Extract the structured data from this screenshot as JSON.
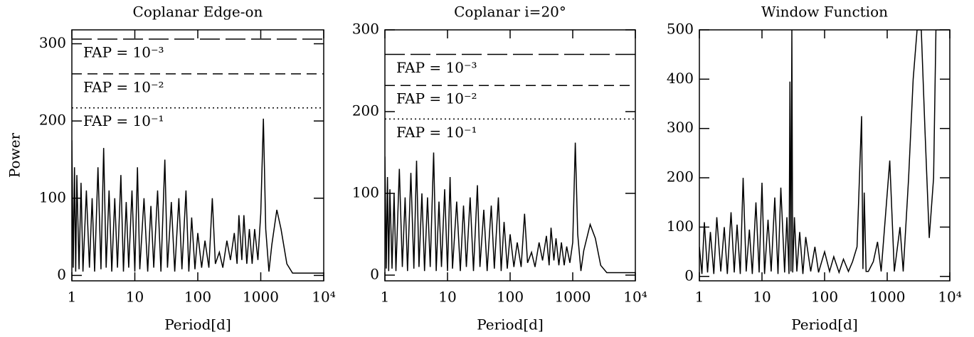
{
  "chart_data": [
    {
      "type": "line",
      "title": "Coplanar Edge-on",
      "xlabel": "Period[d]",
      "ylabel": "Power",
      "xscale": "log",
      "xlim": [
        1,
        10000
      ],
      "ylim": [
        -7,
        318
      ],
      "xticks": [
        1,
        10,
        100,
        1000,
        {
          "value": 10000,
          "label": "10⁴"
        }
      ],
      "yticks": [
        0,
        100,
        200,
        300
      ],
      "series": [
        {
          "color": "#000000",
          "x": [
            1,
            1.05,
            1.1,
            1.15,
            1.2,
            1.3,
            1.4,
            1.5,
            1.7,
            1.9,
            2.1,
            2.3,
            2.6,
            2.9,
            3.2,
            3.5,
            3.9,
            4.3,
            4.8,
            5.3,
            6,
            6.6,
            7.3,
            8,
            9,
            10,
            11,
            12,
            14,
            16,
            18,
            20,
            23,
            26,
            30,
            33,
            38,
            43,
            50,
            56,
            65,
            72,
            80,
            90,
            100,
            115,
            130,
            150,
            170,
            190,
            220,
            250,
            290,
            330,
            380,
            420,
            450,
            500,
            540,
            600,
            660,
            730,
            800,
            900,
            1000,
            1100,
            1200,
            1350,
            1500,
            1800,
            2100,
            2600,
            3200,
            5000,
            10000
          ],
          "values": [
            175,
            10,
            140,
            5,
            130,
            8,
            120,
            5,
            110,
            10,
            100,
            5,
            140,
            8,
            165,
            10,
            110,
            5,
            100,
            10,
            130,
            5,
            95,
            10,
            110,
            5,
            140,
            8,
            100,
            5,
            90,
            10,
            110,
            5,
            150,
            10,
            95,
            5,
            100,
            8,
            110,
            5,
            75,
            8,
            55,
            10,
            45,
            10,
            100,
            15,
            30,
            10,
            45,
            20,
            55,
            15,
            78,
            20,
            78,
            15,
            60,
            15,
            60,
            20,
            80,
            203,
            60,
            5,
            40,
            85,
            60,
            15,
            3,
            3,
            3
          ]
        }
      ],
      "hlines": [
        {
          "value": 306,
          "label": "FAP = 10⁻³",
          "style": "long-dash"
        },
        {
          "value": 261,
          "label": "FAP = 10⁻²",
          "style": "short-dash"
        },
        {
          "value": 217,
          "label": "FAP = 10⁻¹",
          "style": "dotted"
        }
      ]
    },
    {
      "type": "line",
      "title": "Coplanar i=20°",
      "xlabel": "Period[d]",
      "xscale": "log",
      "xlim": [
        1,
        10000
      ],
      "ylim": [
        -7,
        300
      ],
      "xticks": [
        1,
        10,
        100,
        1000,
        {
          "value": 10000,
          "label": "10⁴"
        }
      ],
      "yticks": [
        0,
        100,
        200,
        300
      ],
      "series": [
        {
          "color": "#000000",
          "x": [
            1,
            1.05,
            1.1,
            1.15,
            1.2,
            1.3,
            1.4,
            1.5,
            1.7,
            1.9,
            2.1,
            2.3,
            2.6,
            2.9,
            3.2,
            3.5,
            3.9,
            4.3,
            4.8,
            5.3,
            6,
            6.6,
            7.3,
            8,
            9,
            10,
            11,
            12,
            14,
            16,
            18,
            20,
            23,
            26,
            30,
            33,
            38,
            43,
            50,
            56,
            65,
            72,
            80,
            90,
            100,
            115,
            130,
            150,
            170,
            190,
            220,
            250,
            290,
            330,
            380,
            420,
            450,
            500,
            540,
            600,
            660,
            730,
            800,
            900,
            1000,
            1100,
            1200,
            1350,
            1500,
            1900,
            2300,
            2800,
            3500,
            5000,
            10000
          ],
          "values": [
            145,
            8,
            120,
            5,
            105,
            8,
            100,
            5,
            130,
            10,
            95,
            5,
            125,
            8,
            140,
            10,
            100,
            5,
            95,
            10,
            150,
            5,
            90,
            10,
            105,
            5,
            120,
            8,
            90,
            5,
            85,
            10,
            95,
            5,
            110,
            10,
            80,
            5,
            85,
            8,
            95,
            5,
            65,
            8,
            50,
            10,
            40,
            10,
            75,
            15,
            28,
            10,
            40,
            18,
            48,
            12,
            58,
            18,
            45,
            12,
            40,
            12,
            35,
            15,
            40,
            162,
            50,
            5,
            30,
            62,
            45,
            12,
            3,
            3,
            3
          ]
        }
      ],
      "hlines": [
        {
          "value": 270,
          "label": "FAP = 10⁻³",
          "style": "long-dash"
        },
        {
          "value": 232,
          "label": "FAP = 10⁻²",
          "style": "short-dash"
        },
        {
          "value": 191,
          "label": "FAP = 10⁻¹",
          "style": "dotted"
        }
      ]
    },
    {
      "type": "line",
      "title": "Window Function",
      "xlabel": "Period[d]",
      "xscale": "log",
      "xlim": [
        1,
        10000
      ],
      "ylim": [
        -9,
        500
      ],
      "xticks": [
        1,
        10,
        100,
        1000,
        {
          "value": 10000,
          "label": "10⁴"
        }
      ],
      "yticks": [
        0,
        100,
        200,
        300,
        400,
        500
      ],
      "series": [
        {
          "color": "#000000",
          "x": [
            1,
            1.1,
            1.2,
            1.35,
            1.5,
            1.7,
            1.9,
            2.2,
            2.5,
            2.8,
            3.2,
            3.6,
            4,
            4.5,
            5,
            5.6,
            6.3,
            7,
            8,
            9,
            10,
            11,
            12.5,
            14,
            16,
            18,
            20,
            23,
            25,
            27,
            28,
            29,
            30,
            31,
            33,
            36,
            40,
            45,
            50,
            60,
            70,
            80,
            100,
            120,
            140,
            170,
            200,
            240,
            280,
            330,
            390,
            410,
            430,
            460,
            500,
            600,
            700,
            800,
            1100,
            1300,
            1600,
            1800,
            2200,
            2600,
            3000,
            3500,
            4000,
            4700,
            5500,
            6000,
            7000
          ],
          "values": [
            60,
            5,
            110,
            8,
            90,
            5,
            120,
            10,
            100,
            5,
            130,
            8,
            105,
            5,
            200,
            10,
            95,
            5,
            150,
            8,
            190,
            5,
            115,
            10,
            160,
            5,
            180,
            8,
            120,
            5,
            395,
            10,
            500,
            8,
            120,
            10,
            90,
            5,
            80,
            10,
            60,
            8,
            50,
            10,
            40,
            8,
            35,
            10,
            30,
            60,
            325,
            15,
            170,
            10,
            10,
            30,
            70,
            10,
            235,
            10,
            100,
            10,
            200,
            400,
            500,
            500,
            300,
            78,
            200,
            500,
            500
          ]
        }
      ]
    }
  ]
}
